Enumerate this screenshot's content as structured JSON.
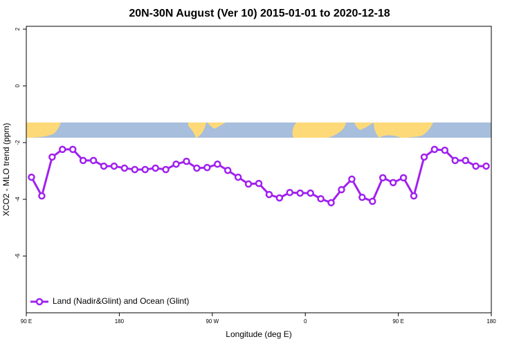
{
  "chart_data": {
    "type": "line",
    "title": "20N-30N August (Ver 10)   2015-01-01 to 2020-12-18",
    "x_label": "Longitude (deg E)",
    "y_label": "XCO2 - MLO trend (ppm)",
    "x": [
      95,
      105,
      115,
      125,
      135,
      145,
      155,
      165,
      175,
      185,
      195,
      205,
      215,
      225,
      235,
      245,
      255,
      265,
      275,
      285,
      295,
      305,
      315,
      325,
      335,
      345,
      355,
      365,
      375,
      385,
      395,
      405,
      415,
      425,
      435,
      445,
      455,
      465,
      475,
      485,
      495,
      505,
      515,
      525,
      535
    ],
    "series": [
      {
        "name": "Land (Nadir&Glint) and Ocean (Glint)",
        "color": "#a020f0",
        "values": [
          -3.22,
          -3.88,
          -2.51,
          -2.24,
          -2.24,
          -2.63,
          -2.63,
          -2.83,
          -2.83,
          -2.9,
          -2.95,
          -2.95,
          -2.9,
          -2.95,
          -2.76,
          -2.66,
          -2.9,
          -2.88,
          -2.76,
          -2.98,
          -3.22,
          -3.46,
          -3.44,
          -3.83,
          -3.95,
          -3.76,
          -3.78,
          -3.78,
          -3.98,
          -4.12,
          -3.66,
          -3.29,
          -3.93,
          -4.07,
          -3.24,
          -3.41,
          -3.24,
          -3.88,
          -2.51,
          -2.24,
          -2.27,
          -2.63,
          -2.63,
          -2.83,
          -2.83
        ]
      }
    ],
    "xlim": [
      90,
      540
    ],
    "xticks": [
      {
        "value": 90,
        "label": "90 E"
      },
      180,
      {
        "value": 270,
        "label": "90 W"
      },
      {
        "value": 360,
        "label": "0"
      },
      {
        "value": 450,
        "label": "90 E"
      },
      {
        "value": 540,
        "label": "180"
      }
    ],
    "ylim": [
      -8,
      2.1
    ],
    "yticks": [
      2,
      0,
      -2,
      -4,
      -6
    ],
    "legend_position": "bottom-left"
  }
}
